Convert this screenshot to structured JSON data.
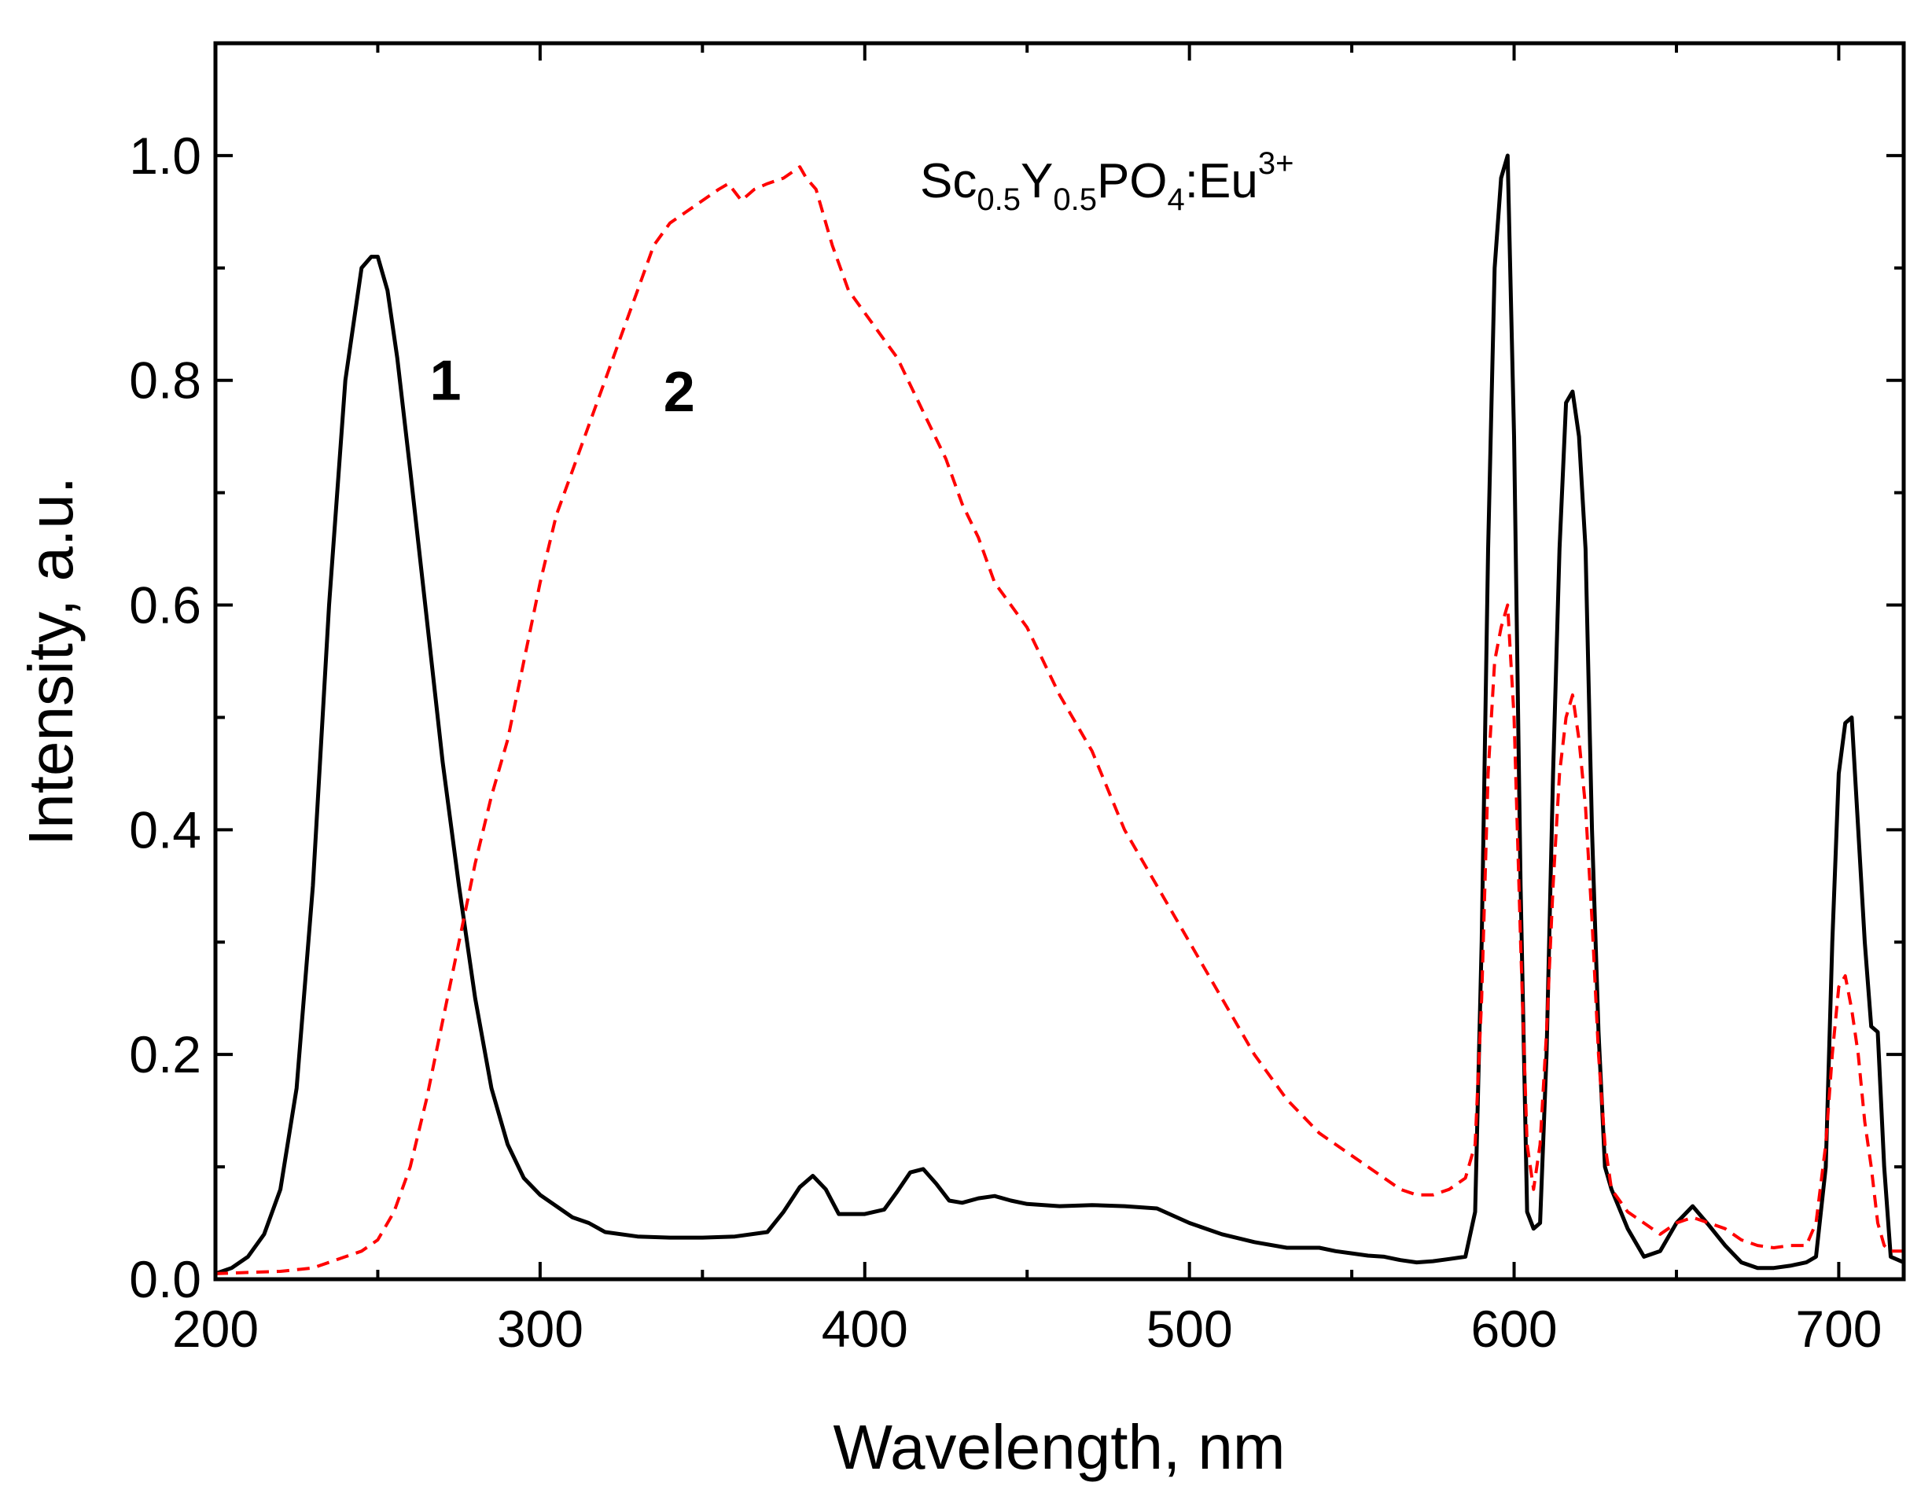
{
  "chart_data": {
    "type": "line",
    "title": "",
    "xlabel": "Wavelength, nm",
    "ylabel": "Intensity, a.u.",
    "xlim": [
      200,
      720
    ],
    "ylim": [
      0,
      1.1
    ],
    "xticks": [
      200,
      300,
      400,
      500,
      600,
      700
    ],
    "xtick_labels": [
      "200",
      "300",
      "400",
      "500",
      "600",
      "700"
    ],
    "yticks": [
      0.0,
      0.2,
      0.4,
      0.6,
      0.8,
      1.0
    ],
    "ytick_labels": [
      "0.0",
      "0.2",
      "0.4",
      "0.6",
      "0.8",
      "1.0"
    ],
    "grid": false,
    "annotations": {
      "sample": {
        "parts": [
          {
            "text": "Sc",
            "style": "normal"
          },
          {
            "text": "0.5",
            "style": "sub"
          },
          {
            "text": "Y",
            "style": "normal"
          },
          {
            "text": "0.5",
            "style": "sub"
          },
          {
            "text": "PO",
            "style": "normal"
          },
          {
            "text": "4",
            "style": "sub"
          },
          {
            "text": ":Eu",
            "style": "normal"
          },
          {
            "text": "3+",
            "style": "sup"
          }
        ]
      }
    },
    "series": [
      {
        "name": "1",
        "label": "1",
        "label_at": [
          266,
          0.8
        ],
        "color": "#000000",
        "dash": "solid",
        "x": [
          200,
          205,
          210,
          215,
          220,
          225,
          230,
          235,
          240,
          245,
          248,
          250,
          253,
          256,
          260,
          265,
          270,
          275,
          280,
          285,
          290,
          295,
          300,
          305,
          310,
          315,
          320,
          330,
          340,
          350,
          360,
          370,
          375,
          380,
          384,
          388,
          392,
          400,
          406,
          410,
          414,
          418,
          422,
          426,
          430,
          435,
          440,
          445,
          450,
          460,
          470,
          480,
          490,
          500,
          510,
          520,
          530,
          540,
          545,
          550,
          555,
          560,
          565,
          570,
          575,
          580,
          585,
          588,
          590,
          592,
          594,
          596,
          598,
          600,
          602,
          604,
          606,
          608,
          610,
          612,
          614,
          616,
          618,
          620,
          622,
          624,
          626,
          628,
          630,
          635,
          640,
          645,
          650,
          655,
          660,
          665,
          670,
          675,
          680,
          685,
          690,
          693,
          696,
          698,
          700,
          702,
          704,
          706,
          708,
          710,
          712,
          714,
          716,
          720
        ],
        "y": [
          0.005,
          0.01,
          0.02,
          0.04,
          0.08,
          0.17,
          0.35,
          0.6,
          0.8,
          0.9,
          0.91,
          0.91,
          0.88,
          0.82,
          0.72,
          0.59,
          0.46,
          0.35,
          0.25,
          0.17,
          0.12,
          0.09,
          0.075,
          0.065,
          0.055,
          0.05,
          0.042,
          0.038,
          0.037,
          0.037,
          0.038,
          0.042,
          0.06,
          0.082,
          0.092,
          0.08,
          0.058,
          0.058,
          0.062,
          0.078,
          0.095,
          0.098,
          0.085,
          0.07,
          0.068,
          0.072,
          0.074,
          0.07,
          0.067,
          0.065,
          0.066,
          0.065,
          0.063,
          0.05,
          0.04,
          0.033,
          0.028,
          0.028,
          0.025,
          0.023,
          0.021,
          0.02,
          0.017,
          0.015,
          0.016,
          0.018,
          0.02,
          0.06,
          0.3,
          0.65,
          0.9,
          0.98,
          1.0,
          0.75,
          0.35,
          0.06,
          0.045,
          0.05,
          0.2,
          0.45,
          0.65,
          0.78,
          0.79,
          0.75,
          0.65,
          0.4,
          0.22,
          0.1,
          0.08,
          0.045,
          0.02,
          0.025,
          0.05,
          0.065,
          0.048,
          0.03,
          0.015,
          0.01,
          0.01,
          0.012,
          0.015,
          0.02,
          0.1,
          0.3,
          0.45,
          0.495,
          0.5,
          0.4,
          0.3,
          0.225,
          0.22,
          0.1,
          0.02,
          0.015
        ]
      },
      {
        "name": "2",
        "label": "2",
        "label_at": [
          338,
          0.79
        ],
        "color": "#ff0000",
        "dash": "dashed",
        "x": [
          200,
          210,
          220,
          230,
          240,
          245,
          250,
          255,
          260,
          265,
          270,
          275,
          280,
          285,
          290,
          295,
          300,
          305,
          310,
          315,
          320,
          325,
          330,
          335,
          340,
          345,
          350,
          355,
          358,
          362,
          366,
          370,
          375,
          380,
          382,
          385,
          390,
          395,
          400,
          405,
          410,
          415,
          420,
          425,
          430,
          435,
          440,
          450,
          460,
          470,
          480,
          490,
          500,
          510,
          520,
          530,
          540,
          550,
          560,
          565,
          570,
          575,
          580,
          585,
          588,
          590,
          592,
          594,
          596,
          598,
          600,
          602,
          604,
          606,
          608,
          610,
          612,
          614,
          616,
          618,
          620,
          622,
          624,
          626,
          628,
          630,
          635,
          640,
          645,
          650,
          655,
          660,
          665,
          670,
          675,
          680,
          685,
          690,
          693,
          696,
          698,
          700,
          702,
          704,
          706,
          708,
          710,
          712,
          714,
          716,
          720
        ],
        "y": [
          0.005,
          0.006,
          0.007,
          0.01,
          0.02,
          0.025,
          0.035,
          0.06,
          0.1,
          0.16,
          0.23,
          0.3,
          0.37,
          0.43,
          0.48,
          0.55,
          0.62,
          0.68,
          0.72,
          0.76,
          0.8,
          0.84,
          0.88,
          0.92,
          0.94,
          0.95,
          0.96,
          0.97,
          0.975,
          0.96,
          0.97,
          0.975,
          0.98,
          0.99,
          0.98,
          0.97,
          0.92,
          0.88,
          0.86,
          0.84,
          0.82,
          0.79,
          0.76,
          0.73,
          0.69,
          0.66,
          0.62,
          0.58,
          0.52,
          0.47,
          0.4,
          0.35,
          0.3,
          0.25,
          0.2,
          0.16,
          0.13,
          0.11,
          0.09,
          0.08,
          0.075,
          0.075,
          0.08,
          0.09,
          0.12,
          0.25,
          0.45,
          0.55,
          0.58,
          0.6,
          0.5,
          0.3,
          0.12,
          0.08,
          0.12,
          0.22,
          0.35,
          0.45,
          0.5,
          0.52,
          0.48,
          0.42,
          0.32,
          0.2,
          0.12,
          0.08,
          0.06,
          0.05,
          0.04,
          0.05,
          0.055,
          0.05,
          0.045,
          0.035,
          0.03,
          0.028,
          0.03,
          0.03,
          0.05,
          0.12,
          0.2,
          0.26,
          0.27,
          0.24,
          0.2,
          0.14,
          0.1,
          0.05,
          0.03,
          0.025,
          0.025
        ]
      }
    ]
  }
}
